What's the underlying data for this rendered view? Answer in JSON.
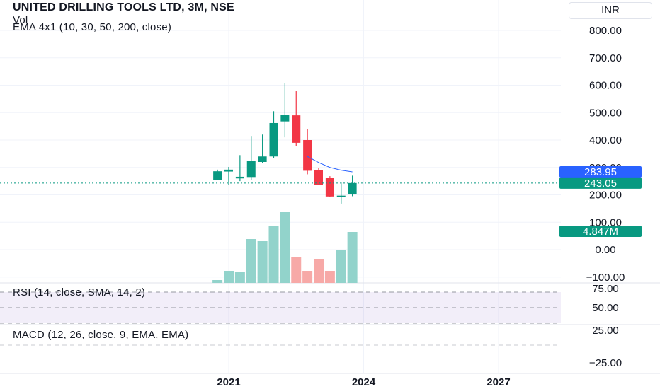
{
  "header": {
    "title": "UNITED DRILLING TOOLS LTD, 3M, NSE",
    "vol_label": "Vol",
    "ema_label": "EMA 4x1 (10, 30, 50, 200, close)",
    "currency": "INR"
  },
  "chart_data": {
    "type": "candlestick",
    "title": "UNITED DRILLING TOOLS LTD, 3M, NSE",
    "price_ticks": [
      "800.00",
      "700.00",
      "600.00",
      "500.00",
      "400.00",
      "300.00",
      "200.00",
      "100.00",
      "0.00",
      "−100.00"
    ],
    "price_tick_values": [
      800,
      700,
      600,
      500,
      400,
      300,
      200,
      100,
      0,
      -100
    ],
    "x_ticks": [
      {
        "label": "2021",
        "t": 2021
      },
      {
        "label": "2024",
        "t": 2024
      },
      {
        "label": "2027",
        "t": 2027
      }
    ],
    "candles": [
      {
        "t": 2020.75,
        "o": 254,
        "h": 292,
        "l": 254,
        "c": 286
      },
      {
        "t": 2021.0,
        "o": 285,
        "h": 302,
        "l": 237,
        "c": 292
      },
      {
        "t": 2021.25,
        "o": 260,
        "h": 345,
        "l": 250,
        "c": 266
      },
      {
        "t": 2021.5,
        "o": 265,
        "h": 415,
        "l": 255,
        "c": 323
      },
      {
        "t": 2021.75,
        "o": 320,
        "h": 420,
        "l": 315,
        "c": 340
      },
      {
        "t": 2022.0,
        "o": 340,
        "h": 505,
        "l": 335,
        "c": 462
      },
      {
        "t": 2022.25,
        "o": 468,
        "h": 608,
        "l": 410,
        "c": 492
      },
      {
        "t": 2022.5,
        "o": 490,
        "h": 578,
        "l": 378,
        "c": 390
      },
      {
        "t": 2022.75,
        "o": 400,
        "h": 440,
        "l": 275,
        "c": 288
      },
      {
        "t": 2023.0,
        "o": 290,
        "h": 297,
        "l": 240,
        "c": 236
      },
      {
        "t": 2023.25,
        "o": 262,
        "h": 268,
        "l": 192,
        "c": 194
      },
      {
        "t": 2023.5,
        "o": 196,
        "h": 245,
        "l": 168,
        "c": 197
      },
      {
        "t": 2023.75,
        "o": 202,
        "h": 270,
        "l": 195,
        "c": 243
      }
    ],
    "volume_relative": [
      0.04,
      0.17,
      0.16,
      0.62,
      0.59,
      0.8,
      1.0,
      0.36,
      0.17,
      0.34,
      0.17,
      0.47,
      0.72
    ],
    "ema_line": [
      {
        "t": 2022.75,
        "v": 340
      },
      {
        "t": 2023.0,
        "v": 318
      },
      {
        "t": 2023.25,
        "v": 300
      },
      {
        "t": 2023.5,
        "v": 290
      },
      {
        "t": 2023.75,
        "v": 284
      }
    ],
    "last_price": "243.05",
    "ema_value": "283.95",
    "volume_value": "4.847M",
    "rsi": {
      "label": "RSI (14, close, SMA, 14, 2)",
      "ticks": [
        "75.00",
        "50.00",
        "25.00"
      ]
    },
    "macd": {
      "label": "MACD (12, 26, close, 9, EMA, EMA)",
      "ticks": [
        "−25.00"
      ]
    },
    "colors": {
      "up": "#089981",
      "down": "#f23645",
      "vol_up": "#92d3cb",
      "vol_down": "#f7a9a7",
      "ema": "#2962ff",
      "ema_badge": "#2962ff",
      "price_badge": "#089981",
      "rsi_band": "#7e57c2"
    }
  }
}
